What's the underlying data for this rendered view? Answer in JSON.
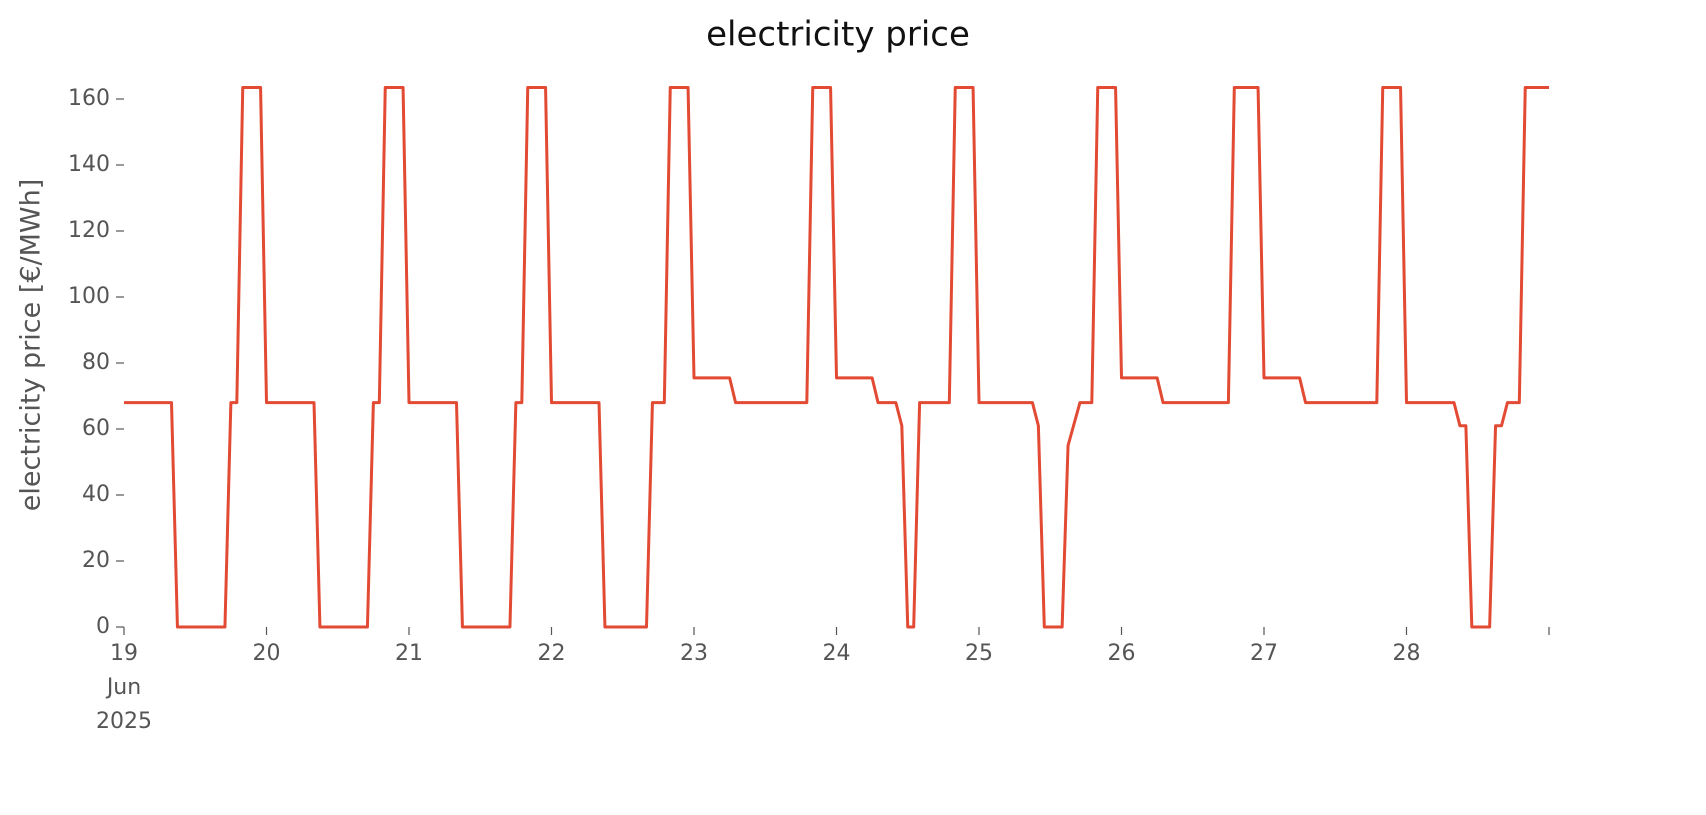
{
  "chart_data": {
    "type": "line",
    "title": "electricity price",
    "ylabel": "electricity price [€/MWh]",
    "x": [
      "2025-06-19T00:00",
      "2025-06-19T08:00",
      "2025-06-19T09:00",
      "2025-06-19T17:00",
      "2025-06-19T18:00",
      "2025-06-19T19:00",
      "2025-06-19T20:00",
      "2025-06-19T23:00",
      "2025-06-20T00:00",
      "2025-06-20T08:00",
      "2025-06-20T09:00",
      "2025-06-20T17:00",
      "2025-06-20T18:00",
      "2025-06-20T19:00",
      "2025-06-20T20:00",
      "2025-06-20T23:00",
      "2025-06-21T00:00",
      "2025-06-21T08:00",
      "2025-06-21T09:00",
      "2025-06-21T17:00",
      "2025-06-21T18:00",
      "2025-06-21T19:00",
      "2025-06-21T20:00",
      "2025-06-21T23:00",
      "2025-06-22T00:00",
      "2025-06-22T08:00",
      "2025-06-22T09:00",
      "2025-06-22T16:00",
      "2025-06-22T17:00",
      "2025-06-22T19:00",
      "2025-06-22T20:00",
      "2025-06-22T23:00",
      "2025-06-23T00:00",
      "2025-06-23T06:00",
      "2025-06-23T07:00",
      "2025-06-23T19:00",
      "2025-06-23T20:00",
      "2025-06-23T23:00",
      "2025-06-24T00:00",
      "2025-06-24T06:00",
      "2025-06-24T07:00",
      "2025-06-24T10:00",
      "2025-06-24T11:00",
      "2025-06-24T12:00",
      "2025-06-24T13:00",
      "2025-06-24T14:00",
      "2025-06-24T19:00",
      "2025-06-24T20:00",
      "2025-06-24T23:00",
      "2025-06-25T00:00",
      "2025-06-25T09:00",
      "2025-06-25T10:00",
      "2025-06-25T11:00",
      "2025-06-25T14:00",
      "2025-06-25T15:00",
      "2025-06-25T17:00",
      "2025-06-25T19:00",
      "2025-06-25T20:00",
      "2025-06-25T23:00",
      "2025-06-26T00:00",
      "2025-06-26T06:00",
      "2025-06-26T07:00",
      "2025-06-26T18:00",
      "2025-06-26T19:00",
      "2025-06-26T23:00",
      "2025-06-27T00:00",
      "2025-06-27T06:00",
      "2025-06-27T07:00",
      "2025-06-27T19:00",
      "2025-06-27T20:00",
      "2025-06-27T23:00",
      "2025-06-28T00:00",
      "2025-06-28T08:00",
      "2025-06-28T09:00",
      "2025-06-28T10:00",
      "2025-06-28T11:00",
      "2025-06-28T14:00",
      "2025-06-28T15:00",
      "2025-06-28T16:00",
      "2025-06-28T17:00",
      "2025-06-28T19:00",
      "2025-06-28T20:00",
      "2025-06-28T23:00",
      "2025-06-29T00:00"
    ],
    "series": [
      {
        "color": "#e24a33",
        "values": [
          68,
          68,
          0,
          0,
          68,
          68,
          163.5,
          163.5,
          68,
          68,
          0,
          0,
          68,
          68,
          163.5,
          163.5,
          68,
          68,
          0,
          0,
          68,
          68,
          163.5,
          163.5,
          68,
          68,
          0,
          0,
          68,
          68,
          163.5,
          163.5,
          75.5,
          75.5,
          68,
          68,
          163.5,
          163.5,
          75.5,
          75.5,
          68,
          68,
          61,
          0,
          0,
          68,
          68,
          163.5,
          163.5,
          68,
          68,
          61,
          0,
          0,
          55,
          68,
          68,
          163.5,
          163.5,
          75.5,
          75.5,
          68,
          68,
          163.5,
          163.5,
          75.5,
          75.5,
          68,
          68,
          163.5,
          163.5,
          68,
          68,
          61,
          61,
          0,
          0,
          61,
          61,
          68,
          68,
          163.5,
          163.5,
          163.5
        ]
      }
    ],
    "xlim": [
      "2025-06-19T00:00",
      "2025-06-29T00:00"
    ],
    "xticks": [
      {
        "value": "2025-06-19T00:00",
        "label": "19\nJun\n2025"
      },
      {
        "value": "2025-06-20T00:00",
        "label": "20"
      },
      {
        "value": "2025-06-21T00:00",
        "label": "21"
      },
      {
        "value": "2025-06-22T00:00",
        "label": "22"
      },
      {
        "value": "2025-06-23T00:00",
        "label": "23"
      },
      {
        "value": "2025-06-24T00:00",
        "label": "24"
      },
      {
        "value": "2025-06-25T00:00",
        "label": "25"
      },
      {
        "value": "2025-06-26T00:00",
        "label": "26"
      },
      {
        "value": "2025-06-27T00:00",
        "label": "27"
      },
      {
        "value": "2025-06-28T00:00",
        "label": "28"
      },
      {
        "value": "2025-06-29T00:00",
        "label": null
      }
    ],
    "ylim": [
      0,
      168
    ],
    "yticks": [
      0,
      20,
      40,
      60,
      80,
      100,
      120,
      140,
      160
    ],
    "grid": false
  }
}
